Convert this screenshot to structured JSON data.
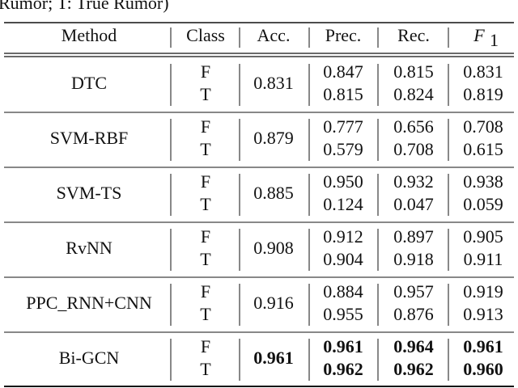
{
  "caption_fragment": "Rumor; T: True Rumor)",
  "table": {
    "headers": [
      "Method",
      "Class",
      "Acc.",
      "Prec.",
      "Rec.",
      "F"
    ],
    "f_subscript": "1",
    "rows": [
      {
        "method": "DTC",
        "classes": [
          "F",
          "T"
        ],
        "acc": "0.831",
        "prec": [
          "0.847",
          "0.815"
        ],
        "rec": [
          "0.815",
          "0.824"
        ],
        "f1": [
          "0.831",
          "0.819"
        ],
        "bold": false
      },
      {
        "method": "SVM-RBF",
        "classes": [
          "F",
          "T"
        ],
        "acc": "0.879",
        "prec": [
          "0.777",
          "0.579"
        ],
        "rec": [
          "0.656",
          "0.708"
        ],
        "f1": [
          "0.708",
          "0.615"
        ],
        "bold": false
      },
      {
        "method": "SVM-TS",
        "classes": [
          "F",
          "T"
        ],
        "acc": "0.885",
        "prec": [
          "0.950",
          "0.124"
        ],
        "rec": [
          "0.932",
          "0.047"
        ],
        "f1": [
          "0.938",
          "0.059"
        ],
        "bold": false
      },
      {
        "method": "RvNN",
        "classes": [
          "F",
          "T"
        ],
        "acc": "0.908",
        "prec": [
          "0.912",
          "0.904"
        ],
        "rec": [
          "0.897",
          "0.918"
        ],
        "f1": [
          "0.905",
          "0.911"
        ],
        "bold": false
      },
      {
        "method": "PPC_RNN+CNN",
        "classes": [
          "F",
          "T"
        ],
        "acc": "0.916",
        "prec": [
          "0.884",
          "0.955"
        ],
        "rec": [
          "0.957",
          "0.876"
        ],
        "f1": [
          "0.919",
          "0.913"
        ],
        "bold": false
      },
      {
        "method": "Bi-GCN",
        "classes": [
          "F",
          "T"
        ],
        "acc": "0.961",
        "prec": [
          "0.961",
          "0.962"
        ],
        "rec": [
          "0.964",
          "0.962"
        ],
        "f1": [
          "0.961",
          "0.960"
        ],
        "bold": true
      }
    ]
  }
}
